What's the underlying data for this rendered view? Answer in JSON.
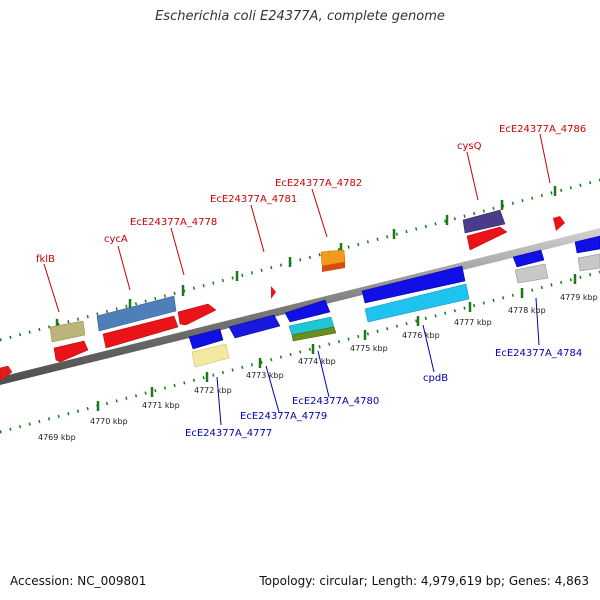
{
  "title": "Escherichia coli E24377A, complete genome",
  "footer": {
    "accession": "Accession: NC_009801",
    "stats": "Topology: circular; Length: 4,979,619 bp; Genes: 4,863"
  },
  "scale_labels": [
    "4769 kbp",
    "4770 kbp",
    "4771 kbp",
    "4772 kbp",
    "4773 kbp",
    "4774 kbp",
    "4775 kbp",
    "4776 kbp",
    "4777 kbp",
    "4778 kbp",
    "4779 kbp"
  ],
  "top_gene_labels": [
    "fklB",
    "cycA",
    "EcE24377A_4778",
    "EcE24377A_4781",
    "EcE24377A_4782",
    "cysQ",
    "EcE24377A_4786"
  ],
  "bottom_gene_labels": [
    "EcE24377A_4777",
    "EcE24377A_4779",
    "EcE24377A_4780",
    "cpdB",
    "EcE24377A_4784"
  ],
  "colors": {
    "forward_label": "#cc0000",
    "reverse_label": "#0000b3",
    "backbone": "#8c8c8c",
    "ticks": "#1a7a1a"
  }
}
